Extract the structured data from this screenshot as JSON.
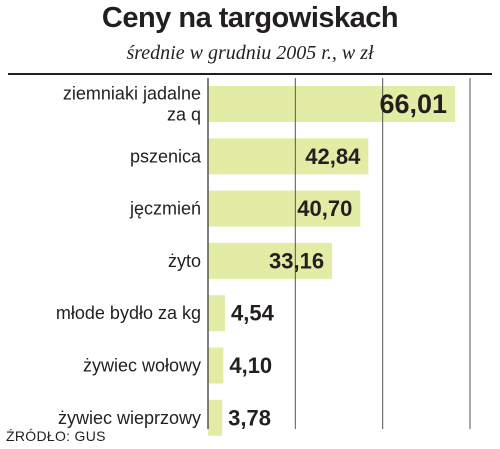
{
  "chart_data": {
    "type": "bar",
    "orientation": "horizontal",
    "title": "Ceny na targowiskach",
    "subtitle": "średnie w grudniu 2005 r., w zł",
    "categories": [
      [
        "ziemniaki jadalne",
        "za q"
      ],
      [
        "pszenica"
      ],
      [
        "jęczmień"
      ],
      [
        "żyto"
      ],
      [
        "młode bydło za kg"
      ],
      [
        "żywiec wołowy"
      ],
      [
        "żywiec wieprzowy"
      ]
    ],
    "values": [
      66.01,
      42.84,
      40.7,
      33.16,
      4.54,
      4.1,
      3.78
    ],
    "value_labels": [
      "66,01",
      "42,84",
      "40,70",
      "33,16",
      "4,54",
      "4,10",
      "3,78"
    ],
    "xlim": [
      0,
      70
    ],
    "gridlines": [
      0,
      23.33,
      46.67,
      70
    ],
    "grid": true,
    "highlight_index": 0
  },
  "source": "ŹRÓDŁO: GUS",
  "colors": {
    "bar": "#e2eca5",
    "grid": "#555555",
    "text": "#231f20",
    "highlight_text": "#e2363d",
    "label_bg": "#ffffff"
  }
}
